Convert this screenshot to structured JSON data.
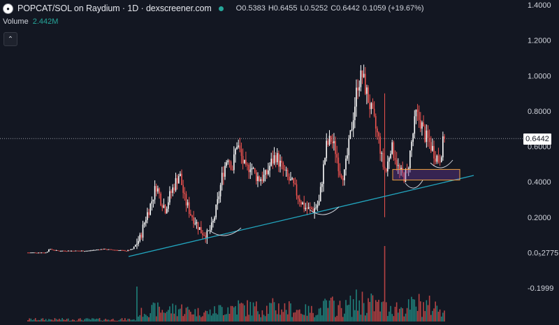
{
  "header": {
    "title": "POPCAT/SOL on Raydium · 1D · dexscreener.com",
    "ohlc": {
      "open": "O0.5383",
      "high": "H0.6455",
      "low": "L0.5252",
      "close": "C0.6442",
      "change": "0.1059 (+19.67%)"
    },
    "status_color": "#26a69a"
  },
  "volume": {
    "label": "Volume",
    "value": "2.442M"
  },
  "controls": {
    "collapse_icon": "chevron-up-icon",
    "collapse_glyph": "⌃"
  },
  "colors": {
    "up": "#ffffff",
    "down": "#ef5350",
    "vol_up": "#26a69a",
    "vol_down": "#ef5350",
    "trendline": "#22a7c0",
    "zone": "#f0a040",
    "background": "#131722"
  },
  "chart_data": {
    "type": "candlestick",
    "title": "POPCAT/SOL on Raydium · 1D · dexscreener.com",
    "last_price": "0.6442",
    "y_ticks": [
      {
        "value": 1.4,
        "label": "1.4000"
      },
      {
        "value": 1.2,
        "label": "1.2000"
      },
      {
        "value": 1.0,
        "label": "1.0000"
      },
      {
        "value": 0.8,
        "label": "0.8000"
      },
      {
        "value": 0.6,
        "label": "0.6000"
      },
      {
        "value": 0.4,
        "label": "0.4000"
      },
      {
        "value": 0.2,
        "label": "0.2000"
      },
      {
        "value": 0.0,
        "label": "0.0₅2775"
      },
      {
        "value": -0.2,
        "label": "-0.1999"
      }
    ],
    "ylim": [
      -0.2,
      1.4
    ],
    "price_path": [
      [
        0,
        0.0
      ],
      [
        25,
        0.0
      ],
      [
        28,
        0.02
      ],
      [
        40,
        0.01
      ],
      [
        60,
        0.01
      ],
      [
        80,
        0.01
      ],
      [
        100,
        0.02
      ],
      [
        132,
        0.01
      ],
      [
        140,
        0.02
      ],
      [
        150,
        0.08
      ],
      [
        158,
        0.2
      ],
      [
        165,
        0.28
      ],
      [
        172,
        0.38
      ],
      [
        178,
        0.3
      ],
      [
        184,
        0.25
      ],
      [
        190,
        0.32
      ],
      [
        196,
        0.38
      ],
      [
        203,
        0.45
      ],
      [
        210,
        0.3
      ],
      [
        218,
        0.22
      ],
      [
        224,
        0.18
      ],
      [
        232,
        0.12
      ],
      [
        240,
        0.1
      ],
      [
        247,
        0.15
      ],
      [
        254,
        0.28
      ],
      [
        261,
        0.45
      ],
      [
        268,
        0.55
      ],
      [
        274,
        0.48
      ],
      [
        280,
        0.62
      ],
      [
        286,
        0.54
      ],
      [
        292,
        0.46
      ],
      [
        298,
        0.5
      ],
      [
        304,
        0.44
      ],
      [
        310,
        0.42
      ],
      [
        318,
        0.43
      ],
      [
        325,
        0.5
      ],
      [
        332,
        0.55
      ],
      [
        340,
        0.48
      ],
      [
        348,
        0.42
      ],
      [
        355,
        0.38
      ],
      [
        362,
        0.32
      ],
      [
        370,
        0.26
      ],
      [
        377,
        0.24
      ],
      [
        384,
        0.25
      ],
      [
        390,
        0.28
      ],
      [
        395,
        0.45
      ],
      [
        400,
        0.6
      ],
      [
        406,
        0.64
      ],
      [
        412,
        0.58
      ],
      [
        418,
        0.46
      ],
      [
        424,
        0.44
      ],
      [
        430,
        0.6
      ],
      [
        436,
        0.78
      ],
      [
        442,
        0.96
      ],
      [
        448,
        1.0
      ],
      [
        454,
        0.9
      ],
      [
        460,
        0.8
      ],
      [
        466,
        0.7
      ],
      [
        471,
        0.62
      ],
      [
        475,
        0.5
      ],
      [
        480,
        0.46
      ],
      [
        486,
        0.6
      ],
      [
        492,
        0.55
      ],
      [
        497,
        0.46
      ],
      [
        503,
        0.43
      ],
      [
        508,
        0.45
      ],
      [
        514,
        0.62
      ],
      [
        520,
        0.78
      ],
      [
        526,
        0.74
      ],
      [
        532,
        0.66
      ],
      [
        538,
        0.62
      ],
      [
        545,
        0.56
      ],
      [
        551,
        0.52
      ],
      [
        555,
        0.6
      ],
      [
        558,
        0.6442
      ]
    ],
    "trendline": {
      "from": [
        0.0,
        0.0
      ],
      "to": [
        1.0,
        0.43
      ]
    },
    "zone": {
      "low": 0.41,
      "high": 0.47
    }
  }
}
